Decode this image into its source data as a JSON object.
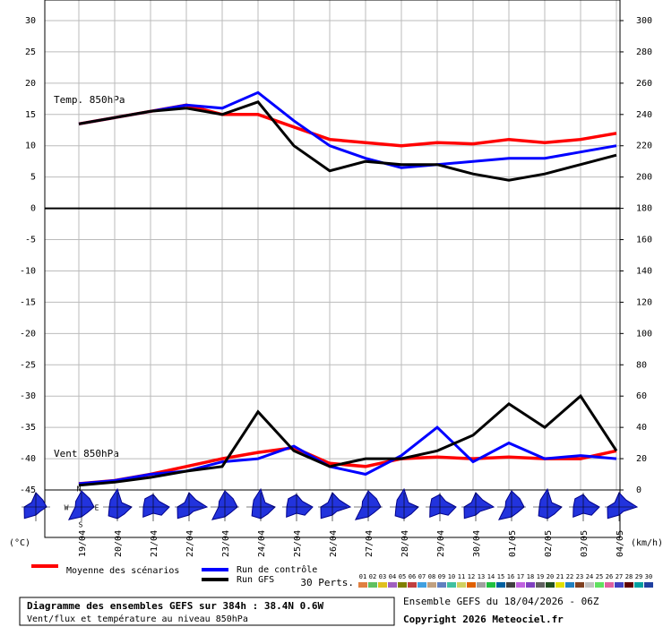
{
  "chart_data": {
    "type": "line",
    "panel_labels": [
      "Temp. 850hPa",
      "Vent 850hPa"
    ],
    "ylabel": "(°C)",
    "y2label": "(km/h)",
    "categories": [
      "19/04",
      "20/04",
      "21/04",
      "22/04",
      "23/04",
      "24/04",
      "25/04",
      "26/04",
      "27/04",
      "28/04",
      "29/04",
      "30/04",
      "01/05",
      "02/05",
      "03/05",
      "04/05"
    ],
    "ylim": [
      -45,
      30
    ],
    "yticks": [
      -45,
      -40,
      -35,
      -30,
      -25,
      -20,
      -15,
      -10,
      -5,
      0,
      5,
      10,
      15,
      20,
      25,
      30
    ],
    "y2lim": [
      0,
      300
    ],
    "y2ticks": [
      0,
      20,
      40,
      60,
      80,
      100,
      120,
      140,
      160,
      180,
      200,
      220,
      240,
      260,
      280,
      300
    ],
    "grid": true,
    "series": [
      {
        "name": "Moyenne des scénarios",
        "color": "#ff0000",
        "values": [
          13.5,
          14.5,
          15.5,
          16.5,
          15,
          15,
          13,
          11,
          10.5,
          10,
          10.5,
          10.3,
          11,
          10.5,
          11,
          12
        ]
      },
      {
        "name": "Run de contrôle",
        "color": "#0000ff",
        "values": [
          13.5,
          14.5,
          15.5,
          16.5,
          16,
          18.5,
          14,
          10,
          8,
          6.5,
          7,
          7.5,
          8,
          8,
          9,
          10
        ]
      },
      {
        "name": "Run GFS",
        "color": "#000000",
        "values": [
          13.5,
          14.5,
          15.5,
          16,
          15,
          17,
          10,
          6,
          7.5,
          7,
          7,
          5.5,
          4.5,
          5.5,
          7,
          8.5
        ]
      },
      {
        "name": "Moyenne des scénarios",
        "color": "#ff0000",
        "axis": "y2",
        "values": [
          4,
          6,
          10,
          15,
          20,
          24,
          27,
          17,
          15,
          20,
          21,
          20,
          21,
          20,
          20,
          25
        ]
      },
      {
        "name": "Run de contrôle",
        "color": "#0000ff",
        "axis": "y2",
        "values": [
          4,
          6,
          10,
          12,
          18,
          20,
          28,
          15,
          10,
          22,
          40,
          18,
          30,
          20,
          22,
          20
        ]
      },
      {
        "name": "Run GFS",
        "color": "#000000",
        "axis": "y2",
        "values": [
          3,
          5,
          8,
          12,
          15,
          50,
          25,
          15,
          20,
          20,
          25,
          35,
          55,
          40,
          60,
          25
        ]
      }
    ],
    "compass": [
      "N",
      "S",
      "W",
      "E"
    ],
    "perts_label": "30 Perts.",
    "perts": [
      {
        "label": "01",
        "color": "#e08040"
      },
      {
        "label": "02",
        "color": "#60c060"
      },
      {
        "label": "03",
        "color": "#e0c020"
      },
      {
        "label": "04",
        "color": "#a060c0"
      },
      {
        "label": "05",
        "color": "#808000"
      },
      {
        "label": "06",
        "color": "#c04040"
      },
      {
        "label": "07",
        "color": "#40a0e0"
      },
      {
        "label": "08",
        "color": "#c0a080"
      },
      {
        "label": "09",
        "color": "#6080c0"
      },
      {
        "label": "10",
        "color": "#40c0a0"
      },
      {
        "label": "11",
        "color": "#d0d060"
      },
      {
        "label": "12",
        "color": "#e06000"
      },
      {
        "label": "13",
        "color": "#a0a0a0"
      },
      {
        "label": "14",
        "color": "#20c040"
      },
      {
        "label": "15",
        "color": "#0060a0"
      },
      {
        "label": "16",
        "color": "#404040"
      },
      {
        "label": "17",
        "color": "#c060e0"
      },
      {
        "label": "18",
        "color": "#8040c0"
      },
      {
        "label": "19",
        "color": "#606060"
      },
      {
        "label": "20",
        "color": "#205020"
      },
      {
        "label": "21",
        "color": "#e0e000"
      },
      {
        "label": "22",
        "color": "#2080c0"
      },
      {
        "label": "23",
        "color": "#804020"
      },
      {
        "label": "24",
        "color": "#c0c0c0"
      },
      {
        "label": "25",
        "color": "#60e060"
      },
      {
        "label": "26",
        "color": "#e060a0"
      },
      {
        "label": "27",
        "color": "#4040c0"
      },
      {
        "label": "28",
        "color": "#600000"
      },
      {
        "label": "29",
        "color": "#00a0a0"
      },
      {
        "label": "30",
        "color": "#2040a0"
      }
    ],
    "run_info": "Ensemble GEFS du 18/04/2026 - 06Z",
    "title": "Diagramme des ensembles GEFS sur 384h : 38.4N 0.6W",
    "subtitle": "Vent/flux et température au niveau 850hPa",
    "copyright": "Copyright 2026 Meteociel.fr"
  }
}
